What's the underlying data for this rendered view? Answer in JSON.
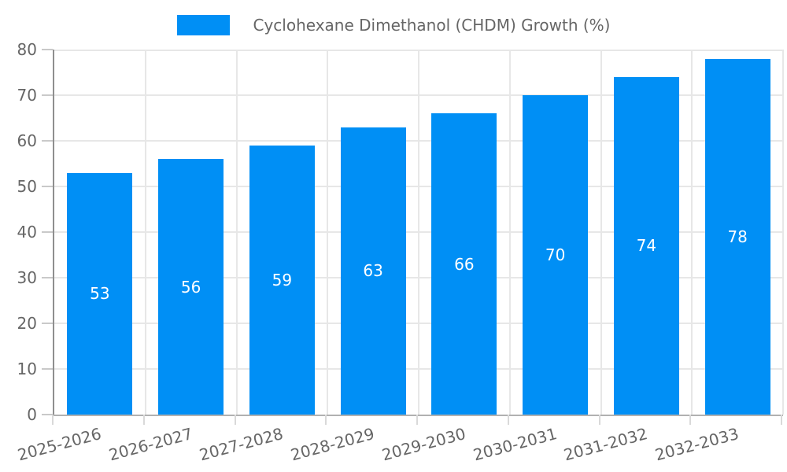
{
  "legend": {
    "label": "Cyclohexane Dimethanol (CHDM) Growth (%)"
  },
  "chart_data": {
    "type": "bar",
    "title": "Cyclohexane Dimethanol (CHDM) Growth (%)",
    "categories": [
      "2025-2026",
      "2026-2027",
      "2027-2028",
      "2028-2029",
      "2029-2030",
      "2030-2031",
      "2031-2032",
      "2032-2033"
    ],
    "series": [
      {
        "name": "Cyclohexane Dimethanol (CHDM) Growth (%)",
        "values": [
          53,
          56,
          59,
          63,
          66,
          70,
          74,
          78
        ]
      }
    ],
    "value_labels": [
      "53",
      "56",
      "59",
      "63",
      "66",
      "70",
      "74",
      "78"
    ],
    "yticks": [
      "0",
      "10",
      "20",
      "30",
      "40",
      "50",
      "60",
      "70",
      "80"
    ],
    "ylim": [
      0,
      80
    ],
    "xlabel": "",
    "ylabel": "",
    "grid": "on",
    "legend_position": "top-center",
    "value_label_position": "inside-middle"
  },
  "colors": {
    "bar": "#008ff5",
    "value_label": "#ffffff",
    "tick_label": "#666666",
    "legend_text": "#666666",
    "grid": "#e7e7e7",
    "background": "#ffffff"
  }
}
